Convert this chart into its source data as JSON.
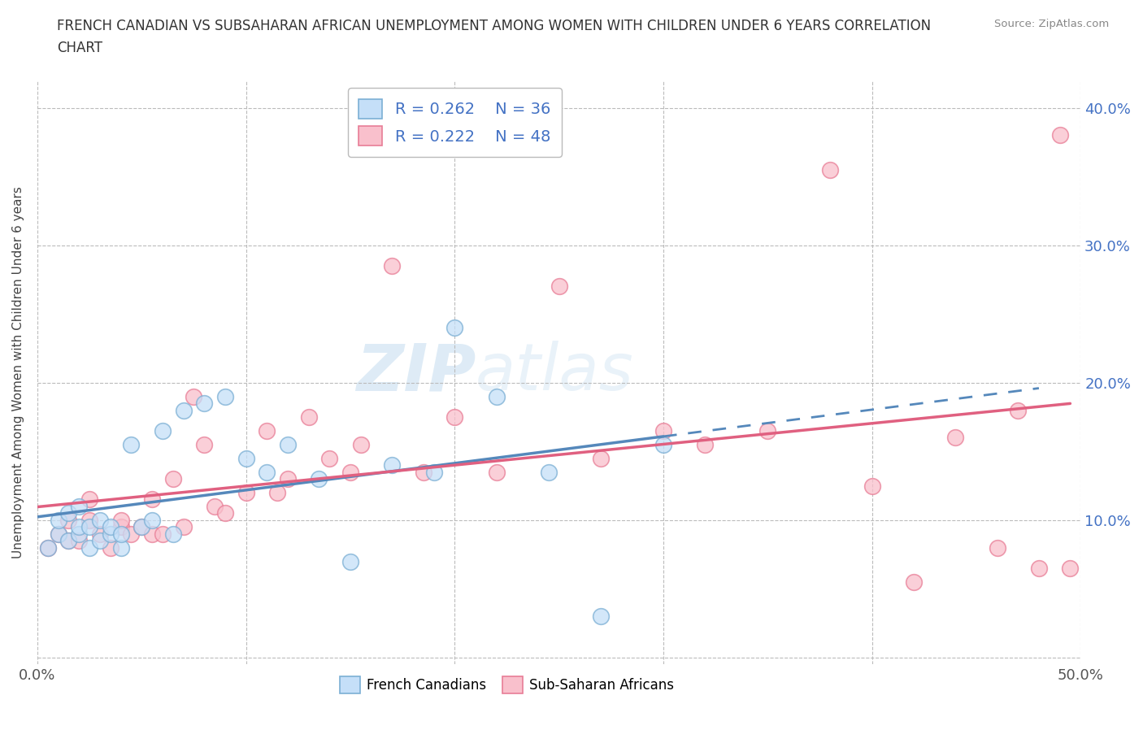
{
  "title": "FRENCH CANADIAN VS SUBSAHARAN AFRICAN UNEMPLOYMENT AMONG WOMEN WITH CHILDREN UNDER 6 YEARS CORRELATION\nCHART",
  "source": "Source: ZipAtlas.com",
  "ylabel": "Unemployment Among Women with Children Under 6 years",
  "xlim": [
    0.0,
    0.5
  ],
  "ylim": [
    -0.005,
    0.42
  ],
  "xticks": [
    0.0,
    0.1,
    0.2,
    0.3,
    0.4,
    0.5
  ],
  "yticks": [
    0.0,
    0.1,
    0.2,
    0.3,
    0.4
  ],
  "legend_r1": "R = 0.262",
  "legend_n1": "N = 36",
  "legend_r2": "R = 0.222",
  "legend_n2": "N = 48",
  "blue_fill": "#c5dff8",
  "blue_edge": "#7bafd4",
  "pink_fill": "#f9c0cc",
  "pink_edge": "#e87d96",
  "blue_line_color": "#5588bb",
  "pink_line_color": "#e06080",
  "watermark_zip": "ZIP",
  "watermark_atlas": "atlas",
  "grid_color": "#bbbbbb",
  "french_canadians_x": [
    0.005,
    0.01,
    0.01,
    0.015,
    0.015,
    0.02,
    0.02,
    0.02,
    0.025,
    0.025,
    0.03,
    0.03,
    0.035,
    0.035,
    0.04,
    0.04,
    0.045,
    0.05,
    0.055,
    0.06,
    0.065,
    0.07,
    0.08,
    0.09,
    0.1,
    0.11,
    0.12,
    0.135,
    0.15,
    0.17,
    0.19,
    0.2,
    0.22,
    0.245,
    0.27,
    0.3
  ],
  "french_canadians_y": [
    0.08,
    0.09,
    0.1,
    0.085,
    0.105,
    0.09,
    0.095,
    0.11,
    0.08,
    0.095,
    0.085,
    0.1,
    0.09,
    0.095,
    0.08,
    0.09,
    0.155,
    0.095,
    0.1,
    0.165,
    0.09,
    0.18,
    0.185,
    0.19,
    0.145,
    0.135,
    0.155,
    0.13,
    0.07,
    0.14,
    0.135,
    0.24,
    0.19,
    0.135,
    0.03,
    0.155
  ],
  "subsaharan_x": [
    0.005,
    0.01,
    0.015,
    0.015,
    0.02,
    0.025,
    0.025,
    0.03,
    0.035,
    0.04,
    0.04,
    0.045,
    0.05,
    0.055,
    0.055,
    0.06,
    0.065,
    0.07,
    0.075,
    0.08,
    0.085,
    0.09,
    0.1,
    0.11,
    0.115,
    0.12,
    0.13,
    0.14,
    0.15,
    0.155,
    0.17,
    0.185,
    0.2,
    0.22,
    0.25,
    0.27,
    0.3,
    0.32,
    0.35,
    0.38,
    0.4,
    0.42,
    0.44,
    0.46,
    0.47,
    0.48,
    0.49,
    0.495
  ],
  "subsaharan_y": [
    0.08,
    0.09,
    0.085,
    0.1,
    0.085,
    0.1,
    0.115,
    0.09,
    0.08,
    0.095,
    0.1,
    0.09,
    0.095,
    0.09,
    0.115,
    0.09,
    0.13,
    0.095,
    0.19,
    0.155,
    0.11,
    0.105,
    0.12,
    0.165,
    0.12,
    0.13,
    0.175,
    0.145,
    0.135,
    0.155,
    0.285,
    0.135,
    0.175,
    0.135,
    0.27,
    0.145,
    0.165,
    0.155,
    0.165,
    0.355,
    0.125,
    0.055,
    0.16,
    0.08,
    0.18,
    0.065,
    0.38,
    0.065
  ]
}
